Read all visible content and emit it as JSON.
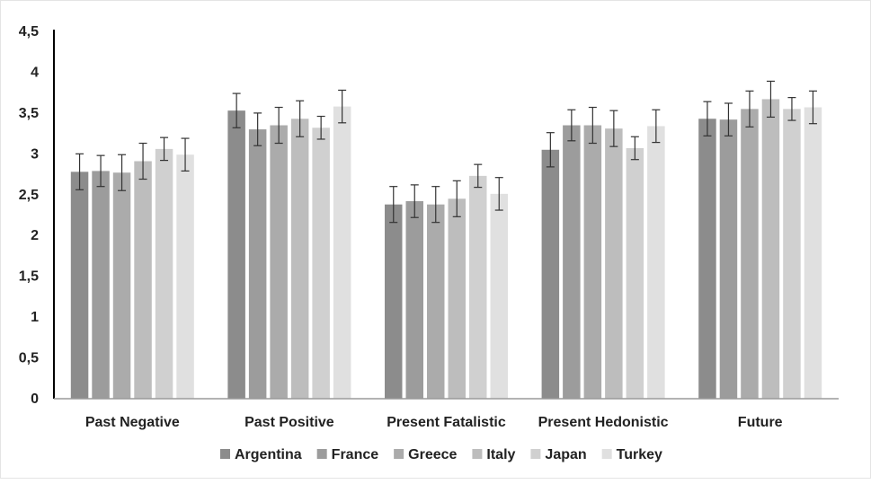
{
  "chart_data": {
    "type": "bar",
    "categories": [
      "Past Negative",
      "Past Positive",
      "Present Fatalistic",
      "Present Hedonistic",
      "Future"
    ],
    "series": [
      {
        "name": "Argentina",
        "color": "#8c8c8c",
        "values": [
          2.78,
          3.53,
          2.38,
          3.05,
          3.43
        ],
        "error": [
          0.22,
          0.21,
          0.22,
          0.21,
          0.21
        ]
      },
      {
        "name": "France",
        "color": "#9c9c9c",
        "values": [
          2.79,
          3.3,
          2.42,
          3.35,
          3.42
        ],
        "error": [
          0.19,
          0.2,
          0.2,
          0.19,
          0.2
        ]
      },
      {
        "name": "Greece",
        "color": "#ababab",
        "values": [
          2.77,
          3.35,
          2.38,
          3.35,
          3.55
        ],
        "error": [
          0.22,
          0.22,
          0.22,
          0.22,
          0.22
        ]
      },
      {
        "name": "Italy",
        "color": "#bdbdbd",
        "values": [
          2.91,
          3.43,
          2.45,
          3.31,
          3.67
        ],
        "error": [
          0.22,
          0.22,
          0.22,
          0.22,
          0.22
        ]
      },
      {
        "name": "Japan",
        "color": "#d0d0d0",
        "values": [
          3.06,
          3.32,
          2.73,
          3.07,
          3.55
        ],
        "error": [
          0.14,
          0.14,
          0.14,
          0.14,
          0.14
        ]
      },
      {
        "name": "Turkey",
        "color": "#e0e0e0",
        "values": [
          2.99,
          3.58,
          2.51,
          3.34,
          3.57
        ],
        "error": [
          0.2,
          0.2,
          0.2,
          0.2,
          0.2
        ]
      }
    ],
    "yticks": [
      "0",
      "0,5",
      "1",
      "1,5",
      "2",
      "2,5",
      "3",
      "3,5",
      "4",
      "4,5"
    ],
    "ylim": [
      0,
      4.5
    ],
    "title": "",
    "xlabel": "",
    "ylabel": "",
    "legend_position": "bottom",
    "grid": false,
    "error_bars": true
  }
}
